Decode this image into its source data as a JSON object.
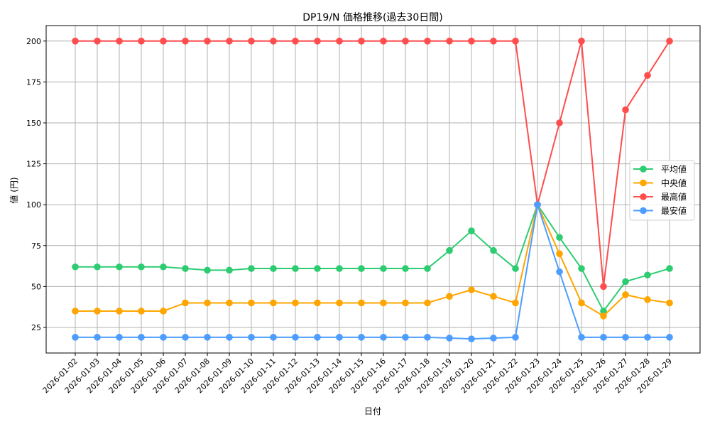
{
  "chart_data": {
    "type": "line",
    "title": "DP19/N 価格推移(過去30日間)",
    "xlabel": "日付",
    "ylabel": "値 (円)",
    "ylim": [
      9,
      209
    ],
    "yticks": [
      25,
      50,
      75,
      100,
      125,
      150,
      175,
      200
    ],
    "grid": true,
    "legend_position": "center right",
    "categories": [
      "2026-01-02",
      "2026-01-03",
      "2026-01-04",
      "2026-01-05",
      "2026-01-06",
      "2026-01-07",
      "2026-01-08",
      "2026-01-09",
      "2026-01-10",
      "2026-01-11",
      "2026-01-12",
      "2026-01-13",
      "2026-01-14",
      "2026-01-15",
      "2026-01-16",
      "2026-01-17",
      "2026-01-18",
      "2026-01-19",
      "2026-01-20",
      "2026-01-21",
      "2026-01-22",
      "2026-01-23",
      "2026-01-24",
      "2026-01-25",
      "2026-01-26",
      "2026-01-27",
      "2026-01-28",
      "2026-01-29"
    ],
    "series": [
      {
        "name": "平均値",
        "color": "#2ecc71",
        "values": [
          62,
          62,
          62,
          62,
          62,
          61,
          60,
          60,
          61,
          61,
          61,
          61,
          61,
          61,
          61,
          61,
          61,
          72,
          84,
          72,
          61,
          100,
          80,
          61,
          35,
          53,
          57,
          61
        ]
      },
      {
        "name": "中央値",
        "color": "#ffa500",
        "values": [
          35,
          35,
          35,
          35,
          35,
          40,
          40,
          40,
          40,
          40,
          40,
          40,
          40,
          40,
          40,
          40,
          40,
          44,
          48,
          44,
          40,
          100,
          70,
          40,
          32,
          45,
          42,
          40
        ]
      },
      {
        "name": "最高値",
        "color": "#ff4d4d",
        "values": [
          200,
          200,
          200,
          200,
          200,
          200,
          200,
          200,
          200,
          200,
          200,
          200,
          200,
          200,
          200,
          200,
          200,
          200,
          200,
          200,
          200,
          100,
          150,
          200,
          50,
          158,
          179,
          200
        ]
      },
      {
        "name": "最安値",
        "color": "#4d9dff",
        "values": [
          19,
          19,
          19,
          19,
          19,
          19,
          19,
          19,
          19,
          19,
          19,
          19,
          19,
          19,
          19,
          19,
          19,
          18.5,
          18,
          18.5,
          19,
          100,
          59,
          19,
          19,
          19,
          19,
          19
        ]
      }
    ]
  },
  "colors": {
    "grid": "#b0b0b0",
    "axis": "#000000",
    "background": "#ffffff"
  }
}
